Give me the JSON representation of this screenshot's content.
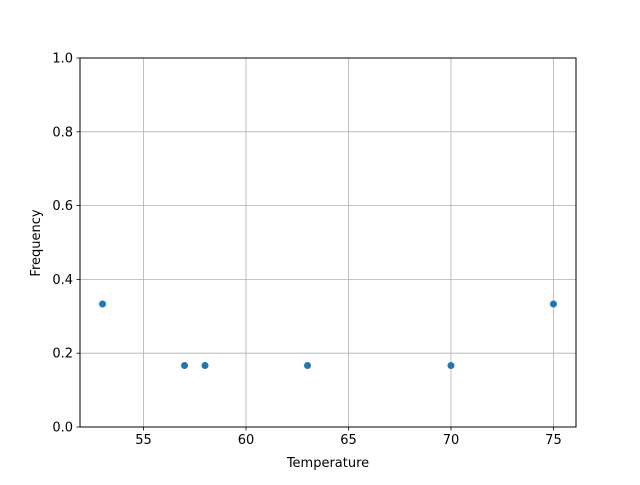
{
  "chart_data": {
    "type": "scatter",
    "title": "",
    "xlabel": "Temperature",
    "ylabel": "Frequency",
    "x": [
      53,
      57,
      58,
      63,
      70,
      75
    ],
    "y": [
      0.3333,
      0.1667,
      0.1667,
      0.1667,
      0.1667,
      0.3333
    ],
    "xlim": [
      51.9,
      76.1
    ],
    "ylim": [
      0,
      1.0
    ],
    "xticks": [
      55,
      60,
      65,
      70,
      75
    ],
    "xtick_labels": [
      "55",
      "60",
      "65",
      "70",
      "75"
    ],
    "yticks": [
      0,
      0.2,
      0.4,
      0.6,
      0.8,
      1.0
    ],
    "ytick_labels": [
      "0.0",
      "0.2",
      "0.4",
      "0.6",
      "0.8",
      "1.0"
    ],
    "grid": true,
    "marker_color": "#1f77b4",
    "grid_color": "#b0b0b0"
  }
}
